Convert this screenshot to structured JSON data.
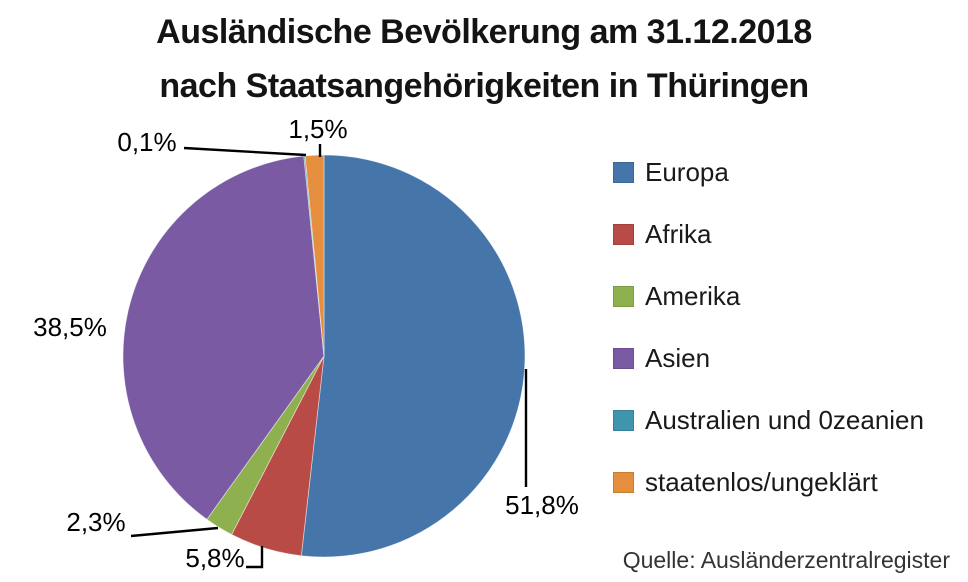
{
  "title": {
    "line1": "Ausländische Bevölkerung am 31.12.2018",
    "line2": "nach Staatsangehörigkeiten in Thüringen"
  },
  "source": "Quelle: Ausländerzentralregister",
  "chart_data": {
    "type": "pie",
    "title": "Ausländische Bevölkerung am 31.12.2018 nach Staatsangehörigkeiten in Thüringen",
    "unit": "percent",
    "start_angle_deg": 0,
    "direction": "clockwise",
    "legend_position": "right",
    "slices": [
      {
        "label": "Europa",
        "value": 51.8,
        "display": "51,8%",
        "color": "#4575A9"
      },
      {
        "label": "Afrika",
        "value": 5.8,
        "display": "5,8%",
        "color": "#B84B46"
      },
      {
        "label": "Amerika",
        "value": 2.3,
        "display": "2,3%",
        "color": "#8FB04E"
      },
      {
        "label": "Asien",
        "value": 38.5,
        "display": "38,5%",
        "color": "#7A5BA3"
      },
      {
        "label": "Australien und 0zeanien",
        "value": 0.1,
        "display": "0,1%",
        "color": "#3F95AB"
      },
      {
        "label": "staatenlos/ungeklärt",
        "value": 1.5,
        "display": "1,5%",
        "color": "#E58E3E"
      }
    ]
  }
}
